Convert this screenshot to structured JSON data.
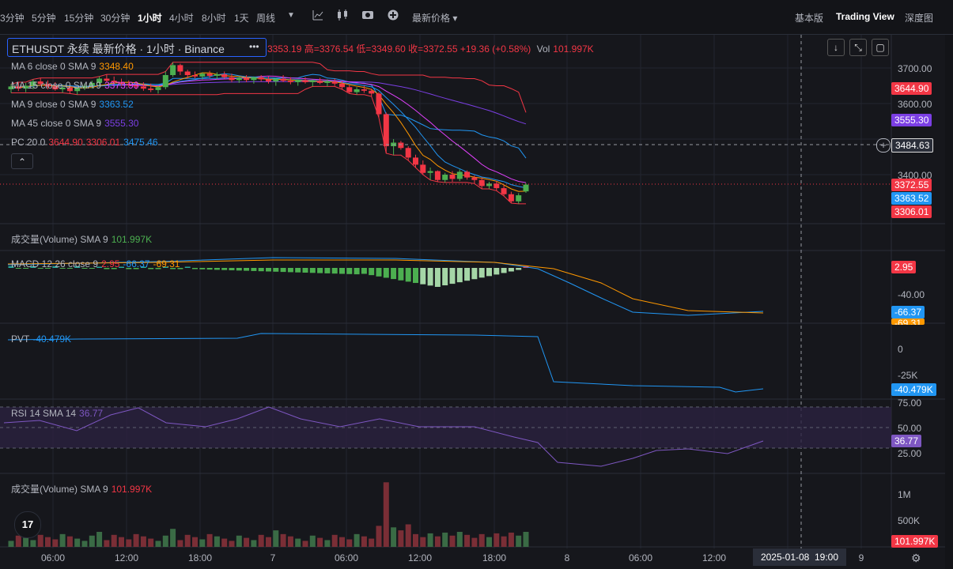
{
  "toolbar": {
    "timeframes": [
      "3分钟",
      "5分钟",
      "15分钟",
      "30分钟",
      "1小时",
      "4小时",
      "8小时",
      "1天",
      "周线"
    ],
    "active_timeframe": "1小时",
    "price_type": "最新价格",
    "right_tabs": [
      "基本版",
      "Trading View",
      "深度图"
    ],
    "active_tab": "Trading View"
  },
  "symbol": {
    "title": "ETHUSDT 永续 最新价格 · 1小时 · Binance",
    "more": "•••",
    "ohlc": "3353.19 高=3376.54 低=3349.60 收=3372.55 +19.36 (+0.58%)",
    "vol_label": "Vol",
    "vol_value": "101.997K"
  },
  "legend": {
    "ma6": {
      "label": "MA 6 close 0 SMA 9",
      "value": "3348.40"
    },
    "ma15": {
      "label": "MA 15 close 0 SMA 9",
      "value": "3373.93"
    },
    "ma9": {
      "label": "MA 9 close 0 SMA 9",
      "value": "3363.52"
    },
    "ma45": {
      "label": "MA 45 close 0 SMA 9",
      "value": "3555.30"
    },
    "pc": {
      "label": "PC 20 0",
      "v1": "3644.90",
      "v2": "3306.01",
      "v3": "3475.46"
    },
    "collapse": "⌃"
  },
  "panes": {
    "volume1": {
      "label": "成交量(Volume) SMA 9",
      "value": "101.997K"
    },
    "macd": {
      "label": "MACD 12 26 close 9",
      "v1": "2.95",
      "v2": "-66.37",
      "v3": "-69.31"
    },
    "pvt": {
      "label": "PVT",
      "value": "-40.479K"
    },
    "rsi": {
      "label": "RSI 14 SMA 14",
      "value": "36.77"
    },
    "volume2": {
      "label": "成交量(Volume) SMA 9",
      "value": "101.997K"
    }
  },
  "price_axis": {
    "ticks": [
      "3700.00",
      "3600.00",
      "3400.00"
    ],
    "badges": {
      "pc_upper": "3644.90",
      "ma45": "3555.30",
      "crosshair": "3484.63",
      "close": "3372.55",
      "ma9": "3363.52",
      "pc_lower": "3306.01"
    }
  },
  "macd_axis": {
    "ticks": [
      "-40.00"
    ],
    "badges": {
      "hist": "2.95",
      "macd": "-66.37",
      "signal": "-69.31"
    }
  },
  "pvt_axis": {
    "ticks": [
      "0",
      "-25K"
    ],
    "badges": {
      "pvt": "-40.479K"
    }
  },
  "rsi_axis": {
    "ticks": [
      "75.00",
      "50.00",
      "25.00"
    ],
    "badges": {
      "rsi": "36.77"
    }
  },
  "vol_axis": {
    "ticks": [
      "1M",
      "500K"
    ],
    "badges": {
      "vol": "101.997K"
    }
  },
  "time_axis": {
    "ticks": [
      "06:00",
      "12:00",
      "18:00",
      "7",
      "06:00",
      "12:00",
      "18:00",
      "8",
      "06:00",
      "12:00",
      "9"
    ],
    "crosshair_label": "2025-01-08  19:00"
  },
  "colors": {
    "up": "#4caf50",
    "down": "#f23645",
    "ma6": "#ff9800",
    "ma15": "#e040fb",
    "ma9": "#2196f3",
    "ma45": "#7b3fe4",
    "pc": "#f23645",
    "pc_mid": "#2196f3",
    "macd": "#2196f3",
    "signal": "#ff9800",
    "pvt": "#2196f3",
    "rsi": "#7e57c2"
  },
  "chart_data": {
    "type": "candlestick",
    "candles": [
      [
        3640,
        3655,
        3630,
        3648
      ],
      [
        3648,
        3660,
        3635,
        3642
      ],
      [
        3642,
        3658,
        3632,
        3650
      ],
      [
        3650,
        3668,
        3640,
        3662
      ],
      [
        3662,
        3672,
        3650,
        3655
      ],
      [
        3655,
        3665,
        3640,
        3648
      ],
      [
        3648,
        3660,
        3636,
        3640
      ],
      [
        3640,
        3652,
        3630,
        3645
      ],
      [
        3645,
        3650,
        3628,
        3635
      ],
      [
        3635,
        3648,
        3625,
        3644
      ],
      [
        3644,
        3656,
        3638,
        3650
      ],
      [
        3650,
        3664,
        3642,
        3658
      ],
      [
        3658,
        3676,
        3648,
        3670
      ],
      [
        3670,
        3682,
        3660,
        3664
      ],
      [
        3664,
        3676,
        3655,
        3660
      ],
      [
        3660,
        3670,
        3650,
        3655
      ],
      [
        3655,
        3665,
        3645,
        3652
      ],
      [
        3652,
        3662,
        3640,
        3648
      ],
      [
        3648,
        3660,
        3636,
        3642
      ],
      [
        3642,
        3656,
        3632,
        3638
      ],
      [
        3638,
        3650,
        3628,
        3646
      ],
      [
        3646,
        3690,
        3640,
        3680
      ],
      [
        3680,
        3716,
        3675,
        3708
      ],
      [
        3708,
        3712,
        3680,
        3690
      ],
      [
        3690,
        3695,
        3670,
        3680
      ],
      [
        3680,
        3690,
        3670,
        3676
      ],
      [
        3676,
        3688,
        3668,
        3684
      ],
      [
        3684,
        3692,
        3672,
        3678
      ],
      [
        3678,
        3688,
        3668,
        3682
      ],
      [
        3682,
        3690,
        3670,
        3674
      ],
      [
        3674,
        3684,
        3660,
        3666
      ],
      [
        3666,
        3676,
        3658,
        3672
      ],
      [
        3672,
        3680,
        3660,
        3666
      ],
      [
        3666,
        3676,
        3656,
        3674
      ],
      [
        3674,
        3680,
        3662,
        3668
      ],
      [
        3668,
        3676,
        3656,
        3662
      ],
      [
        3662,
        3672,
        3650,
        3670
      ],
      [
        3670,
        3680,
        3660,
        3664
      ],
      [
        3664,
        3674,
        3654,
        3660
      ],
      [
        3660,
        3668,
        3650,
        3666
      ],
      [
        3666,
        3674,
        3656,
        3660
      ],
      [
        3660,
        3668,
        3648,
        3664
      ],
      [
        3664,
        3672,
        3654,
        3658
      ],
      [
        3658,
        3668,
        3648,
        3662
      ],
      [
        3662,
        3670,
        3650,
        3656
      ],
      [
        3656,
        3664,
        3640,
        3646
      ],
      [
        3646,
        3652,
        3628,
        3632
      ],
      [
        3632,
        3646,
        3625,
        3640
      ],
      [
        3640,
        3650,
        3630,
        3636
      ],
      [
        3636,
        3642,
        3620,
        3628
      ],
      [
        3628,
        3632,
        3560,
        3570
      ],
      [
        3570,
        3575,
        3460,
        3480
      ],
      [
        3480,
        3500,
        3455,
        3490
      ],
      [
        3490,
        3495,
        3470,
        3475
      ],
      [
        3475,
        3480,
        3440,
        3448
      ],
      [
        3448,
        3456,
        3420,
        3428
      ],
      [
        3428,
        3440,
        3400,
        3405
      ],
      [
        3405,
        3420,
        3385,
        3410
      ],
      [
        3410,
        3412,
        3380,
        3385
      ],
      [
        3385,
        3405,
        3378,
        3400
      ],
      [
        3400,
        3410,
        3380,
        3388
      ],
      [
        3388,
        3415,
        3382,
        3408
      ],
      [
        3408,
        3412,
        3386,
        3392
      ],
      [
        3392,
        3398,
        3375,
        3385
      ],
      [
        3385,
        3392,
        3360,
        3368
      ],
      [
        3368,
        3380,
        3360,
        3375
      ],
      [
        3375,
        3382,
        3355,
        3362
      ],
      [
        3362,
        3370,
        3340,
        3345
      ],
      [
        3345,
        3352,
        3320,
        3325
      ],
      [
        3325,
        3348,
        3318,
        3342
      ],
      [
        3353,
        3376,
        3349,
        3372
      ]
    ]
  }
}
